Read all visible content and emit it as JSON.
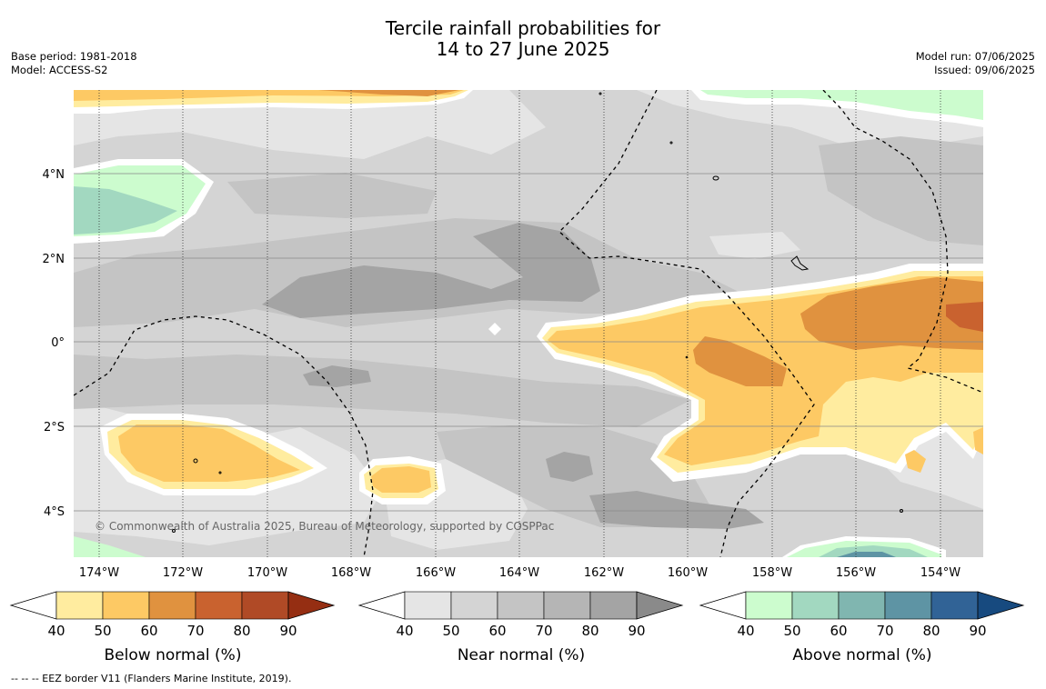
{
  "title": {
    "line1": "Tercile rainfall probabilities for",
    "line2": "14 to 27 June 2025"
  },
  "meta_left": {
    "base_period": "Base period: 1981-2018",
    "model": "Model: ACCESS-S2"
  },
  "meta_right": {
    "model_run": "Model run: 07/06/2025",
    "issued": "Issued: 09/06/2025"
  },
  "map": {
    "lon_labels": [
      "174°W",
      "172°W",
      "170°W",
      "168°W",
      "166°W",
      "164°W",
      "162°W",
      "160°W",
      "158°W",
      "156°W",
      "154°W"
    ],
    "lat_labels": [
      "4°N",
      "2°N",
      "0°",
      "2°S",
      "4°S"
    ],
    "copyright": "© Commonwealth of Australia 2025, Bureau of Meteorology, supported by COSPPac"
  },
  "legend": {
    "tick_labels": [
      "40",
      "50",
      "60",
      "70",
      "80",
      "90"
    ],
    "below": {
      "label": "Below normal (%)",
      "colors": [
        "#ffffff",
        "#ffec9f",
        "#fdc964",
        "#e0923f",
        "#c9622f",
        "#b04a26",
        "#952e12"
      ]
    },
    "near": {
      "label": "Near normal (%)",
      "colors": [
        "#ffffff",
        "#e5e5e5",
        "#d4d4d4",
        "#c4c4c4",
        "#b5b5b5",
        "#a4a4a4",
        "#8a8a8a"
      ]
    },
    "above": {
      "label": "Above normal (%)",
      "colors": [
        "#ffffff",
        "#ccfcce",
        "#a2d8c0",
        "#80b6b0",
        "#5e94a4",
        "#316396",
        "#174a7f"
      ]
    }
  },
  "footnote": "--  --  -- EEZ border V11 (Flanders Marine Institute, 2019)."
}
